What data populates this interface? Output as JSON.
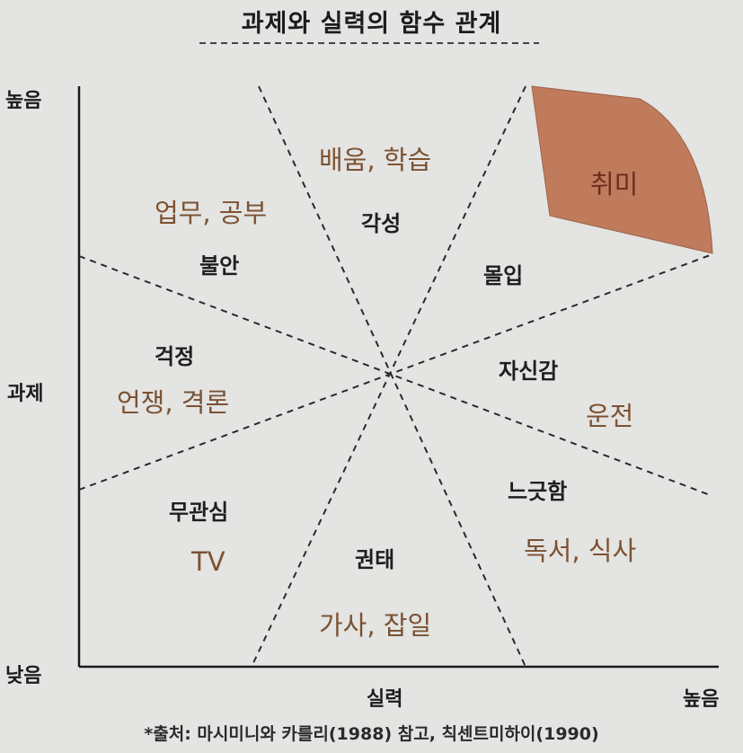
{
  "title": "과제와 실력의 함수 관계",
  "axes": {
    "y_label": "과제",
    "y_high": "높음",
    "y_low": "낮음",
    "x_label": "실력",
    "x_high": "높음"
  },
  "regions": {
    "hobby": "취미",
    "learning": "배움, 학습",
    "arousal": "각성",
    "work_study": "업무, 공부",
    "anxiety": "불안",
    "flow": "몰입",
    "worry": "걱정",
    "argument": "언쟁, 격론",
    "confidence": "자신감",
    "driving": "운전",
    "apathy": "무관심",
    "tv": "TV",
    "relaxation": "느긋함",
    "reading_eating": "독서, 식사",
    "boredom": "권태",
    "chores": "가사, 잡일"
  },
  "source": "*출처: 마시미니와 카를리(1988) 참고, 칙센트미하이(1990)",
  "colors": {
    "background": "#e4e4e2",
    "hobby_fill": "#c07b5c",
    "activity_text": "#7b5233",
    "state_text": "#1e1e1e"
  }
}
